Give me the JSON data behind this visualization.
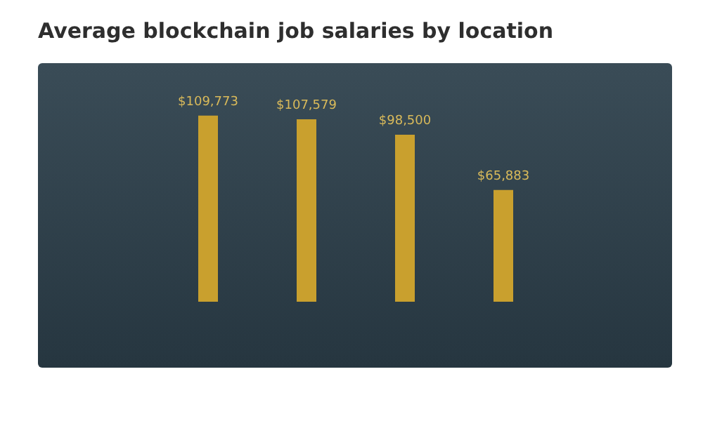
{
  "chart_data": {
    "type": "bar",
    "title": "Average blockchain job salaries by location",
    "categories": [
      null,
      null,
      null,
      null
    ],
    "values": [
      109773,
      107579,
      98500,
      65883
    ],
    "value_labels": [
      "$109,773",
      "$107,579",
      "$98,500",
      "$65,883"
    ],
    "color": "#c9a02e"
  }
}
